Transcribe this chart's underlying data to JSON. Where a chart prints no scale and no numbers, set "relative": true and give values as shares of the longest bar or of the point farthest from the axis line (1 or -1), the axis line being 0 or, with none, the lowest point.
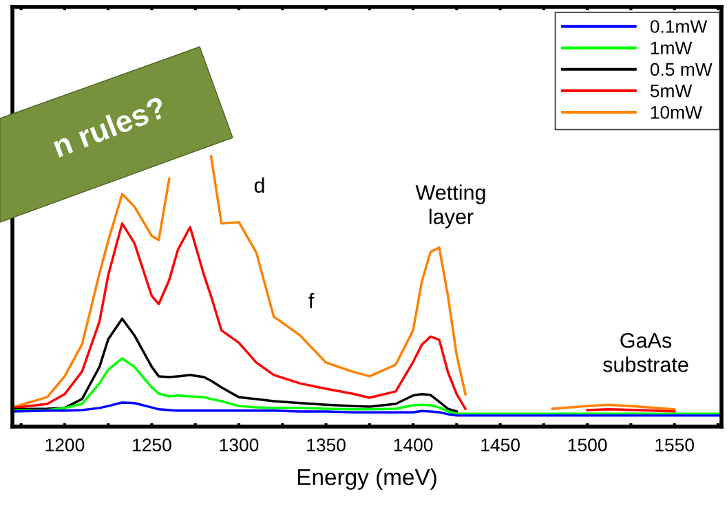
{
  "chart_data": {
    "type": "line",
    "xlabel": "Energy (meV)",
    "relative": true,
    "x": [
      1170,
      1190,
      1200,
      1210,
      1220,
      1225,
      1233,
      1240,
      1250,
      1254,
      1260,
      1265,
      1272,
      1280,
      1284,
      1290,
      1300,
      1310,
      1320,
      1335,
      1350,
      1365,
      1375,
      1390,
      1400,
      1405,
      1410,
      1415,
      1420,
      1425,
      1430,
      1440,
      1460,
      1480,
      1500,
      1512,
      1530,
      1550,
      1577
    ],
    "xlim": [
      1170,
      1577
    ],
    "xticks": [
      {
        "value": 1175,
        "label": null
      },
      1200,
      {
        "value": 1225,
        "label": null
      },
      1250,
      {
        "value": 1275,
        "label": null
      },
      1300,
      {
        "value": 1325,
        "label": null
      },
      1350,
      {
        "value": 1375,
        "label": null
      },
      1400,
      {
        "value": 1425,
        "label": null
      },
      1450,
      {
        "value": 1475,
        "label": null
      },
      1500,
      {
        "value": 1525,
        "label": null
      },
      1550,
      {
        "value": 1575,
        "label": null
      }
    ],
    "tick_labels": "x",
    "grid": false,
    "legend": "top right",
    "marker": "none",
    "line_style": "solid",
    "series": [
      {
        "name": "0.1mW",
        "color": "#0000ff",
        "values": [
          0.056,
          0.059,
          0.059,
          0.061,
          0.069,
          0.076,
          0.089,
          0.087,
          0.071,
          0.064,
          0.061,
          0.059,
          0.059,
          0.059,
          0.059,
          0.059,
          0.059,
          0.059,
          0.059,
          0.056,
          0.056,
          0.053,
          0.053,
          0.053,
          0.053,
          0.058,
          0.056,
          0.053,
          0.046,
          0.041,
          0.041,
          0.041,
          0.041,
          0.041,
          0.041,
          0.041,
          0.041,
          0.041,
          0.041
        ]
      },
      {
        "name": "1mW",
        "color": "#00ff00",
        "values": [
          0.059,
          0.061,
          0.069,
          0.084,
          0.16,
          0.211,
          0.252,
          0.221,
          0.145,
          0.122,
          0.112,
          0.115,
          0.112,
          0.109,
          0.102,
          0.094,
          0.076,
          0.071,
          0.069,
          0.069,
          0.066,
          0.064,
          0.064,
          0.066,
          0.079,
          0.081,
          0.079,
          0.071,
          0.056,
          0.048,
          0.048,
          0.048,
          0.048,
          0.048,
          0.048,
          0.048,
          0.048,
          0.048,
          0.048
        ]
      },
      {
        "name": "0.5 mW",
        "color": "#000000",
        "values": [
          0.064,
          0.066,
          0.069,
          0.102,
          0.221,
          0.323,
          0.399,
          0.338,
          0.221,
          0.186,
          0.183,
          0.186,
          0.191,
          0.183,
          0.17,
          0.145,
          0.109,
          0.102,
          0.094,
          0.087,
          0.081,
          0.076,
          0.074,
          0.084,
          0.115,
          0.12,
          0.117,
          0.092,
          0.066,
          0.056,
          null,
          null,
          null,
          null,
          null,
          null,
          null,
          null,
          null
        ]
      },
      {
        "name": "5mW",
        "color": "#ff0000",
        "values": [
          0.069,
          0.084,
          0.12,
          0.204,
          0.389,
          0.56,
          0.751,
          0.679,
          0.483,
          0.453,
          0.542,
          0.654,
          0.738,
          0.56,
          0.483,
          0.356,
          0.31,
          0.237,
          0.191,
          0.16,
          0.14,
          0.122,
          0.107,
          0.13,
          0.239,
          0.303,
          0.333,
          0.321,
          0.201,
          0.12,
          0.066,
          null,
          null,
          null,
          0.061,
          0.064,
          0.061,
          0.056,
          null
        ]
      },
      {
        "name": "10mW",
        "color": "#ff8000",
        "values": [
          0.071,
          0.109,
          0.186,
          0.305,
          0.567,
          0.687,
          0.86,
          0.814,
          0.705,
          0.69,
          0.916,
          null,
          null,
          null,
          1.0,
          0.751,
          0.756,
          0.644,
          0.407,
          0.338,
          0.237,
          0.204,
          0.186,
          0.229,
          0.356,
          0.537,
          0.646,
          0.662,
          0.483,
          0.265,
          0.12,
          null,
          null,
          0.066,
          0.076,
          0.081,
          0.074,
          0.064,
          null
        ]
      }
    ],
    "annotations": [
      "d",
      "f",
      "Wetting\nlayer",
      "GaAs\nsubstrate",
      "n rules?"
    ]
  }
}
